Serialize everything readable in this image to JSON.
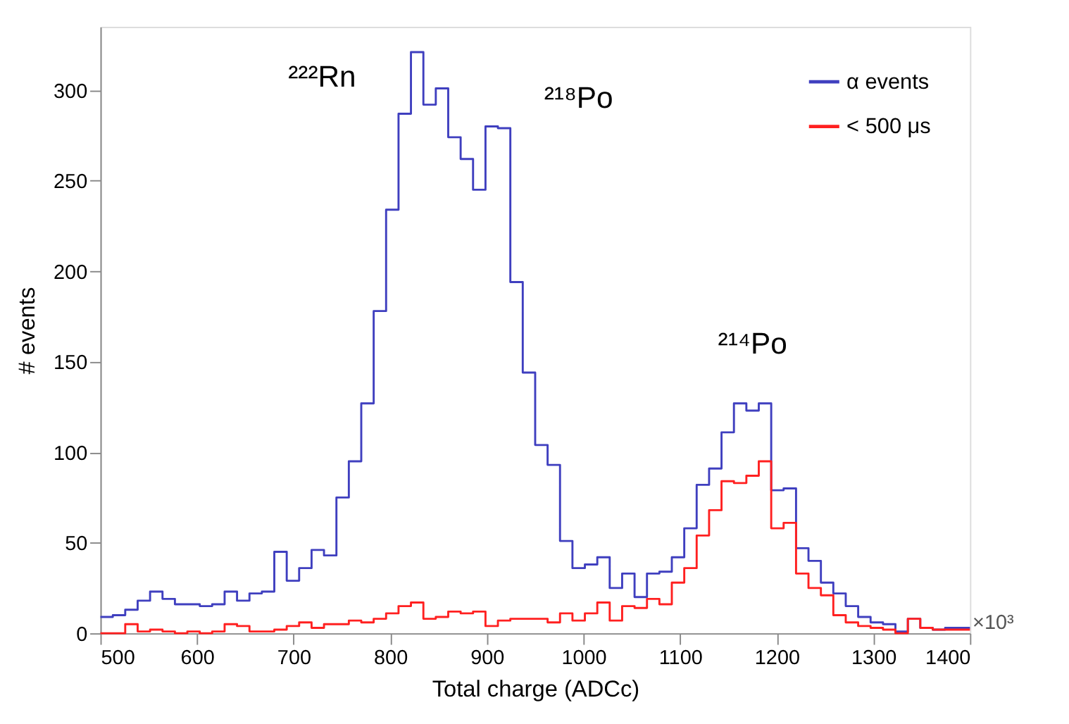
{
  "chart_data": {
    "type": "histogram",
    "xlabel": "Total charge (ADCc)",
    "ylabel": "# events",
    "bins": [
      500,
      512.86,
      525.71,
      538.57,
      551.43,
      564.29,
      577.14,
      590,
      602.86,
      615.71,
      628.57,
      641.43,
      654.29,
      667.14,
      680,
      692.86,
      705.71,
      718.57,
      731.43,
      744.29,
      757.14,
      770,
      782.86,
      795.71,
      808.57,
      821.43,
      834.29,
      847.14,
      860,
      872.86,
      885.71,
      898.57,
      911.43,
      924.29,
      937.14,
      950,
      962.86,
      975.71,
      988.57,
      1001.43,
      1014.29,
      1027.14,
      1040,
      1052.86,
      1065.71,
      1078.57,
      1091.43,
      1104.29,
      1117.14,
      1130,
      1142.86,
      1155.71,
      1168.57,
      1181.43,
      1194.29,
      1207.14,
      1220,
      1232.86,
      1245.71,
      1258.57,
      1271.43,
      1284.29,
      1297.14,
      1310,
      1322.86,
      1335.71,
      1348.57,
      1361.43,
      1374.29,
      1387.14,
      1400
    ],
    "series": [
      {
        "name": "α events",
        "color": "#3f3fbf",
        "values": [
          9,
          10,
          13,
          18,
          23,
          19,
          16,
          16,
          15,
          16,
          23,
          18,
          22,
          23,
          45,
          29,
          36,
          46,
          43,
          75,
          95,
          127,
          178,
          234,
          287,
          321,
          292,
          301,
          274,
          262,
          245,
          280,
          279,
          194,
          144,
          104,
          93,
          51,
          36,
          38,
          42,
          25,
          33,
          20,
          33,
          34,
          42,
          58,
          82,
          91,
          111,
          127,
          123,
          127,
          79,
          80,
          47,
          40,
          28,
          22,
          15,
          9,
          6,
          5,
          1,
          8,
          3,
          2,
          3,
          3
        ]
      },
      {
        "name": "< 500 μs",
        "color": "#ff2020",
        "values": [
          0,
          0,
          5,
          1,
          2,
          1,
          0,
          1,
          0,
          1,
          5,
          4,
          1,
          1,
          2,
          4,
          6,
          3,
          5,
          5,
          7,
          6,
          8,
          11,
          15,
          17,
          8,
          9,
          12,
          11,
          12,
          4,
          7,
          8,
          8,
          8,
          6,
          11,
          7,
          11,
          17,
          7,
          15,
          14,
          19,
          16,
          28,
          36,
          54,
          68,
          84,
          83,
          87,
          95,
          58,
          61,
          33,
          25,
          21,
          10,
          6,
          4,
          3,
          2,
          0,
          8,
          3,
          2,
          2,
          2
        ]
      }
    ],
    "xlim": [
      500,
      1400
    ],
    "xticks": [
      500,
      600,
      700,
      800,
      900,
      1000,
      1100,
      1200,
      1300,
      1400
    ],
    "ylim": [
      0,
      335
    ],
    "yticks": [
      0,
      50,
      100,
      150,
      200,
      250,
      300
    ],
    "grid": false,
    "legend": "top right",
    "annotations": [
      "²²²Rn",
      "²¹⁸Po",
      "²¹⁴Po",
      "×10³"
    ]
  }
}
